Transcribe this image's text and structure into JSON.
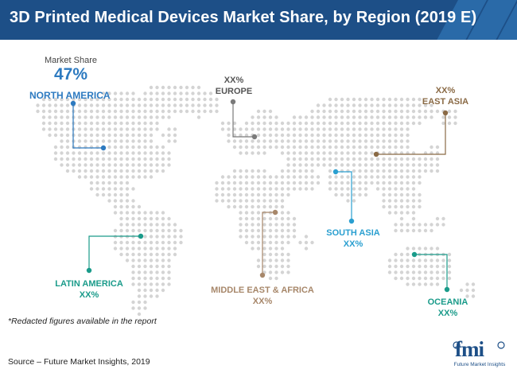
{
  "title": "3D Printed Medical Devices Market Share, by Region (2019 E)",
  "market_share_caption": "Market Share",
  "market_share_value": "47%",
  "regions": {
    "north_america": {
      "name": "NORTH AMERICA",
      "color": "#2d7ac0"
    },
    "europe": {
      "name": "EUROPE",
      "value": "XX%",
      "color": "#7a7a7a"
    },
    "east_asia": {
      "name": "EAST ASIA",
      "value": "XX%",
      "color": "#8a6a45"
    },
    "south_asia": {
      "name": "SOUTH ASIA",
      "value": "XX%",
      "color": "#2a9fd0"
    },
    "latin_america": {
      "name": "LATIN AMERICA",
      "value": "XX%",
      "color": "#1a9b8a"
    },
    "middle_east_africa": {
      "name": "MIDDLE EAST & AFRICA",
      "value": "XX%",
      "color": "#a7876a"
    },
    "oceania": {
      "name": "OCEANIA",
      "value": "XX%",
      "color": "#1a9b8a"
    }
  },
  "footnote": "*Redacted figures available in the report",
  "source": "Source – Future Market Insights, 2019",
  "logo": {
    "word": "fmi",
    "tagline": "Future Market Insights"
  },
  "colors": {
    "title_bar": "#1d4f87",
    "map_dots": "#d4d4d4"
  }
}
